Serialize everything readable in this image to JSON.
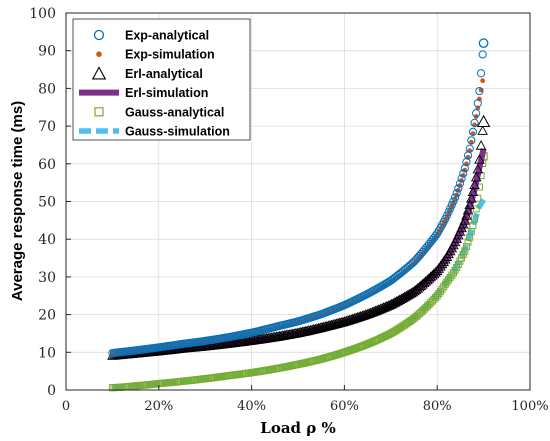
{
  "chart_data": {
    "type": "line",
    "xlabel": "Load ρ %",
    "ylabel": "Average response time (ms)",
    "xlim": [
      0,
      100
    ],
    "ylim": [
      0,
      100
    ],
    "x_ticks": [
      {
        "value": 0,
        "label": "0"
      },
      {
        "value": 20,
        "label": "20%"
      },
      {
        "value": 40,
        "label": "40%"
      },
      {
        "value": 60,
        "label": "60%"
      },
      {
        "value": 80,
        "label": "80%"
      },
      {
        "value": 100,
        "label": "100%"
      }
    ],
    "y_ticks": [
      0,
      10,
      20,
      30,
      40,
      50,
      60,
      70,
      80,
      90,
      100
    ],
    "grid": true,
    "legend_position": "top-left",
    "x": [
      10,
      15,
      20,
      25,
      30,
      35,
      40,
      45,
      50,
      55,
      60,
      65,
      70,
      75,
      80,
      82,
      84,
      86,
      87,
      88,
      89,
      90
    ],
    "series": [
      {
        "name": "Exp-analytical",
        "marker": "circle",
        "color": "#0072BD",
        "values": [
          9.8,
          10.5,
          11.3,
          12.2,
          13.0,
          14.0,
          15.2,
          16.7,
          18.2,
          20.1,
          22.5,
          25.5,
          29.0,
          34.0,
          41.5,
          46.0,
          51.5,
          59.0,
          64.0,
          70.5,
          78.0,
          92.0
        ]
      },
      {
        "name": "Exp-simulation",
        "marker": "dot",
        "color": "#D95319",
        "values": [
          9.7,
          10.4,
          11.2,
          12.0,
          12.9,
          13.8,
          15.0,
          16.4,
          18.0,
          19.8,
          22.2,
          25.0,
          28.5,
          33.5,
          41.0,
          45.5,
          51.0,
          58.5,
          63.5,
          70.0,
          76.5,
          83.5
        ]
      },
      {
        "name": "Erl-analytical",
        "marker": "triangle",
        "color": "#000000",
        "values": [
          9.0,
          9.6,
          10.2,
          10.9,
          11.5,
          12.2,
          13.0,
          13.9,
          15.0,
          16.4,
          18.0,
          20.0,
          22.5,
          26.0,
          31.5,
          35.0,
          39.5,
          45.0,
          49.0,
          54.0,
          60.0,
          71.0
        ]
      },
      {
        "name": "Erl-simulation",
        "marker": "line",
        "color": "#7E2F8E",
        "values": [
          9.0,
          9.5,
          10.1,
          10.8,
          11.4,
          12.1,
          12.9,
          13.8,
          14.9,
          16.2,
          17.8,
          19.8,
          22.3,
          25.8,
          31.2,
          34.7,
          39.2,
          44.5,
          48.5,
          53.0,
          58.5,
          64.0
        ]
      },
      {
        "name": "Gauss-analytical",
        "marker": "square",
        "color": "#77AC30",
        "values": [
          0.6,
          1.1,
          1.7,
          2.3,
          3.0,
          3.8,
          4.6,
          5.6,
          6.8,
          8.2,
          10.0,
          12.2,
          15.0,
          19.0,
          25.0,
          28.5,
          32.0,
          37.0,
          40.5,
          45.0,
          53.0,
          62.0
        ]
      },
      {
        "name": "Gauss-simulation",
        "marker": "dashed",
        "color": "#4DBEEE",
        "values": [
          0.7,
          1.2,
          1.8,
          2.4,
          3.1,
          3.9,
          4.7,
          5.7,
          6.9,
          8.3,
          10.1,
          12.3,
          15.1,
          19.2,
          25.2,
          28.7,
          32.5,
          37.5,
          41.0,
          44.5,
          48.5,
          50.5
        ]
      }
    ]
  }
}
